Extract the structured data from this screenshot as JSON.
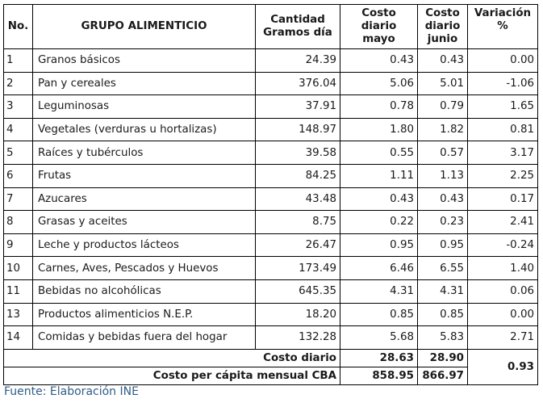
{
  "headers": {
    "no": "No.",
    "grupo": "GRUPO ALIMENTICIO",
    "cantidad": "Cantidad Gramos día",
    "mayo": "Costo diario mayo",
    "junio": "Costo diario junio",
    "variacion": "Variación %"
  },
  "rows": [
    {
      "no": "1",
      "grupo": "Granos básicos",
      "cantidad": "24.39",
      "mayo": "0.43",
      "junio": "0.43",
      "variacion": "0.00"
    },
    {
      "no": "2",
      "grupo": "Pan y cereales",
      "cantidad": "376.04",
      "mayo": "5.06",
      "junio": "5.01",
      "variacion": "-1.06"
    },
    {
      "no": "3",
      "grupo": "Leguminosas",
      "cantidad": "37.91",
      "mayo": "0.78",
      "junio": "0.79",
      "variacion": "1.65"
    },
    {
      "no": "4",
      "grupo": "Vegetales (verduras u hortalizas)",
      "cantidad": "148.97",
      "mayo": "1.80",
      "junio": "1.82",
      "variacion": "0.81"
    },
    {
      "no": "5",
      "grupo": "Raíces y tubérculos",
      "cantidad": "39.58",
      "mayo": "0.55",
      "junio": "0.57",
      "variacion": "3.17"
    },
    {
      "no": "6",
      "grupo": "Frutas",
      "cantidad": "84.25",
      "mayo": "1.11",
      "junio": "1.13",
      "variacion": "2.25"
    },
    {
      "no": "7",
      "grupo": "Azucares",
      "cantidad": "43.48",
      "mayo": "0.43",
      "junio": "0.43",
      "variacion": "0.17"
    },
    {
      "no": "8",
      "grupo": "Grasas y aceites",
      "cantidad": "8.75",
      "mayo": "0.22",
      "junio": "0.23",
      "variacion": "2.41"
    },
    {
      "no": "9",
      "grupo": "Leche y productos lácteos",
      "cantidad": "26.47",
      "mayo": "0.95",
      "junio": "0.95",
      "variacion": "-0.24"
    },
    {
      "no": "10",
      "grupo": "Carnes, Aves, Pescados y Huevos",
      "cantidad": "173.49",
      "mayo": "6.46",
      "junio": "6.55",
      "variacion": "1.40"
    },
    {
      "no": "11",
      "grupo": "Bebidas no alcohólicas",
      "cantidad": "645.35",
      "mayo": "4.31",
      "junio": "4.31",
      "variacion": "0.06"
    },
    {
      "no": "13",
      "grupo": "Productos alimenticios N.E.P.",
      "cantidad": "18.20",
      "mayo": "0.85",
      "junio": "0.85",
      "variacion": "0.00"
    },
    {
      "no": "14",
      "grupo": "Comidas y bebidas fuera del hogar",
      "cantidad": "132.28",
      "mayo": "5.68",
      "junio": "5.83",
      "variacion": "2.71"
    }
  ],
  "footer": {
    "costo_diario_label": "Costo diario",
    "costo_diario_mayo": "28.63",
    "costo_diario_junio": "28.90",
    "mensual_label": "Costo per cápita mensual CBA",
    "mensual_mayo": "858.95",
    "mensual_junio": "866.97",
    "variacion_total": "0.93"
  },
  "source": "Fuente: Elaboración INE"
}
